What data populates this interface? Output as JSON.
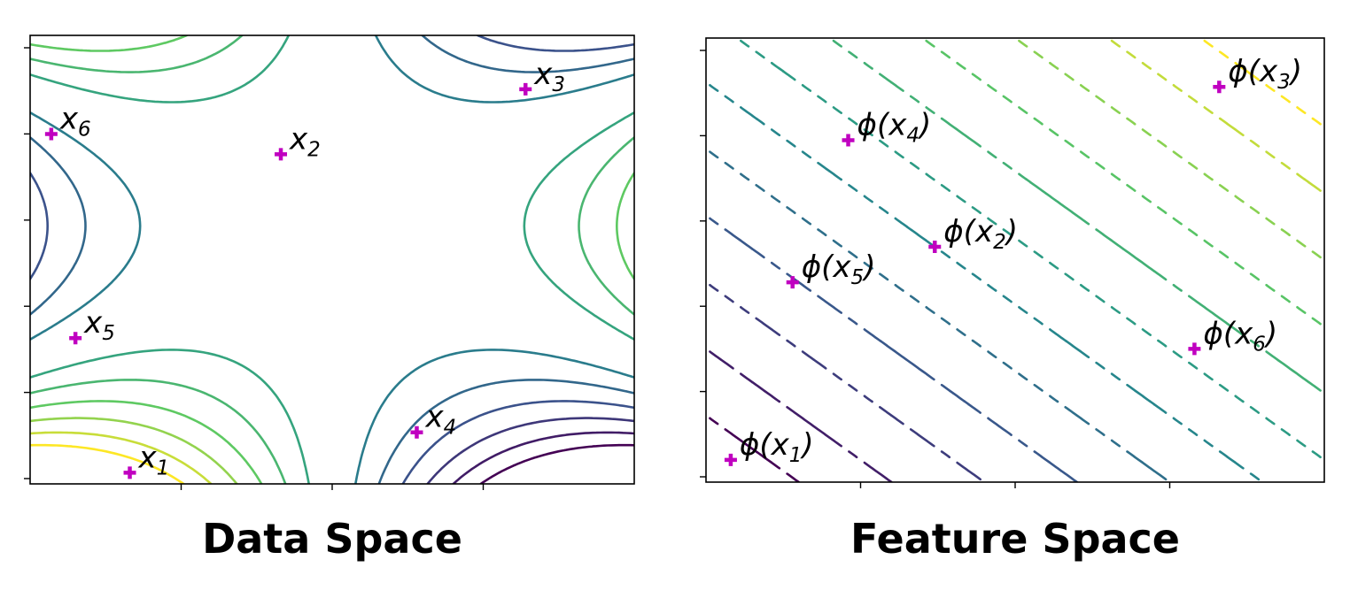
{
  "chart_data": [
    {
      "type": "contour",
      "title": "Data Space",
      "xlim": [
        -1.0,
        1.0
      ],
      "ylim": [
        -1.0,
        1.0
      ],
      "colormap": "viridis",
      "grid": false,
      "tick_labels_visible": false,
      "contour_levels": [
        -0.9,
        -0.75,
        -0.6,
        -0.45,
        -0.3,
        -0.15,
        0.15,
        0.3,
        0.45,
        0.6,
        0.75,
        0.9
      ],
      "points": [
        {
          "id": "x1",
          "label": "x",
          "sub": "1",
          "x": -0.67,
          "y": -0.95
        },
        {
          "id": "x2",
          "label": "x",
          "sub": "2",
          "x": -0.17,
          "y": 0.47
        },
        {
          "id": "x3",
          "label": "x",
          "sub": "3",
          "x": 0.64,
          "y": 0.76
        },
        {
          "id": "x4",
          "label": "x",
          "sub": "4",
          "x": 0.28,
          "y": -0.77
        },
        {
          "id": "x5",
          "label": "x",
          "sub": "5",
          "x": -0.85,
          "y": -0.35
        },
        {
          "id": "x6",
          "label": "x",
          "sub": "6",
          "x": -0.93,
          "y": 0.56
        }
      ]
    },
    {
      "type": "contour",
      "title": "Feature Space",
      "xlim": [
        0.0,
        1.0
      ],
      "ylim": [
        0.0,
        1.0
      ],
      "colormap": "viridis",
      "grid": false,
      "tick_labels_visible": false,
      "contour_levels": [
        0.15,
        0.3,
        0.45,
        0.6,
        0.75,
        0.9,
        1.05,
        1.2,
        1.35,
        1.5,
        1.65,
        1.8
      ],
      "points": [
        {
          "id": "phi-x1",
          "label": "ϕ(x",
          "sub": "1",
          "x": 0.04,
          "y": 0.05
        },
        {
          "id": "phi-x2",
          "label": "ϕ(x",
          "sub": "2",
          "x": 0.37,
          "y": 0.53
        },
        {
          "id": "phi-x3",
          "label": "ϕ(x",
          "sub": "3",
          "x": 0.83,
          "y": 0.89
        },
        {
          "id": "phi-x4",
          "label": "ϕ(x",
          "sub": "4",
          "x": 0.23,
          "y": 0.77
        },
        {
          "id": "phi-x5",
          "label": "ϕ(x",
          "sub": "5",
          "x": 0.14,
          "y": 0.45
        },
        {
          "id": "phi-x6",
          "label": "ϕ(x",
          "sub": "6",
          "x": 0.79,
          "y": 0.3
        }
      ]
    }
  ]
}
